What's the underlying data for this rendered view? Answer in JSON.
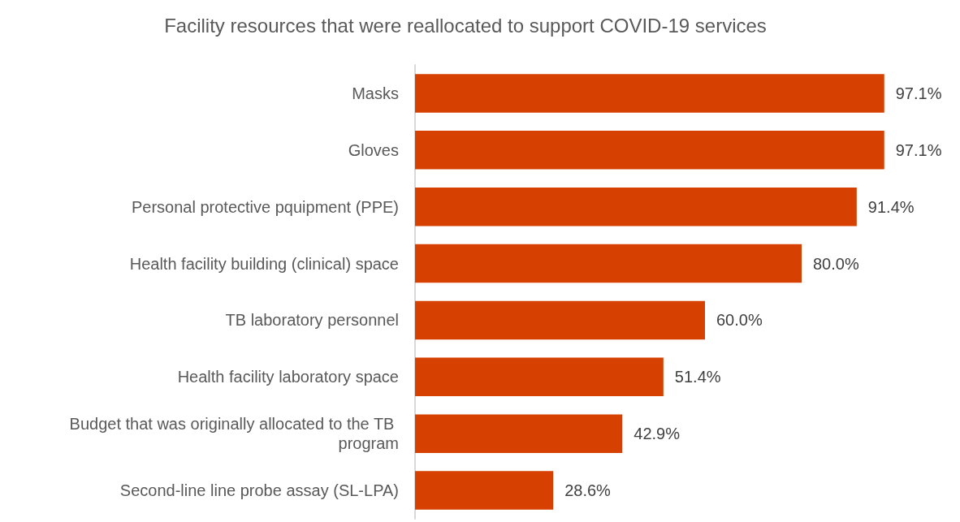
{
  "chart_data": {
    "type": "bar",
    "orientation": "horizontal",
    "title": "Facility resources that were reallocated to support COVID-19 services",
    "categories": [
      "Masks",
      "Gloves",
      "Personal protective pquipment (PPE)",
      "Health facility building (clinical) space",
      "TB laboratory personnel",
      "Health facility laboratory space",
      "Budget that was originally allocated to the TB program",
      "Second-line line probe assay (SL-LPA)"
    ],
    "values": [
      97.1,
      97.1,
      91.4,
      80.0,
      60.0,
      51.4,
      42.9,
      28.6
    ],
    "value_labels": [
      "97.1%",
      "97.1%",
      "91.4%",
      "80.0%",
      "60.0%",
      "51.4%",
      "42.9%",
      "28.6%"
    ],
    "color": "#d64000"
  }
}
